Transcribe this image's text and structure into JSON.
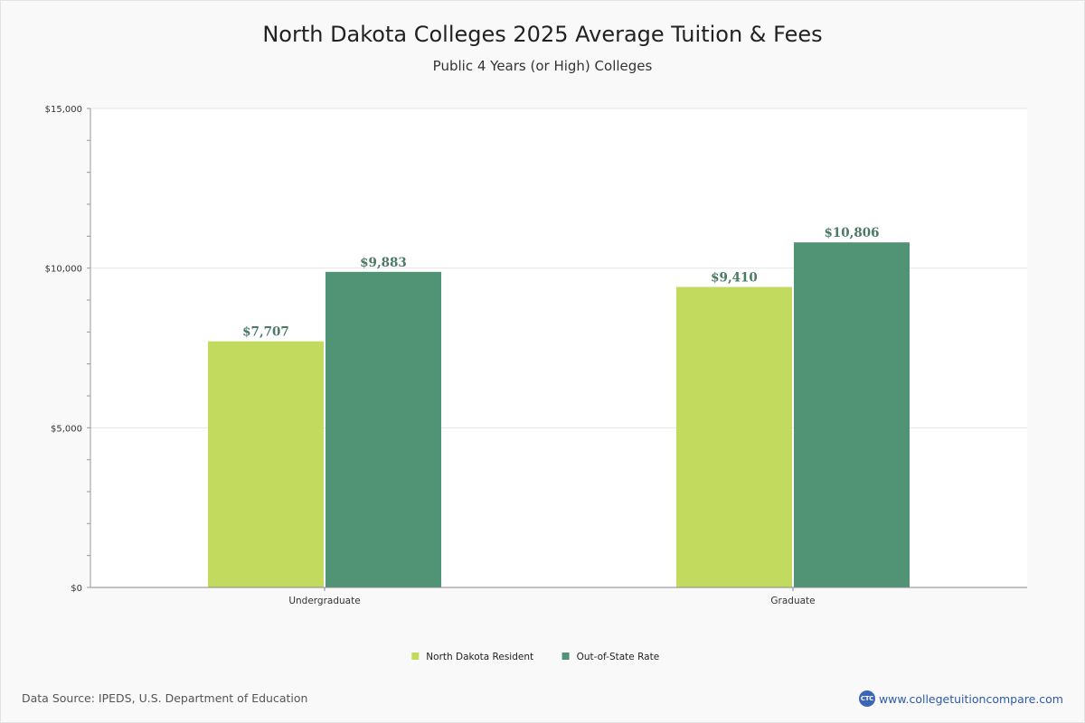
{
  "chart_data": {
    "type": "bar",
    "title": "North Dakota Colleges 2025 Average Tuition & Fees",
    "subtitle": "Public 4 Years (or High)  Colleges",
    "categories": [
      "Undergraduate",
      "Graduate"
    ],
    "series": [
      {
        "name": "North Dakota Resident",
        "values": [
          7707,
          9410
        ],
        "labels": [
          "$7,707",
          "$9,410"
        ],
        "color": "#c2db5f"
      },
      {
        "name": "Out-of-State Rate",
        "values": [
          9883,
          10806
        ],
        "labels": [
          "$9,883",
          "$10,806"
        ],
        "color": "#519375"
      }
    ],
    "ylim": [
      0,
      15000
    ],
    "yticks": [
      0,
      5000,
      10000,
      15000
    ],
    "ytick_labels": [
      "$0",
      "$5,000",
      "$10,000",
      "$15,000"
    ],
    "xlabel": "",
    "ylabel": "",
    "grid": true,
    "legend": "bottom-center",
    "label_color": "#4a7a64"
  },
  "footer": {
    "source": "Data Source: IPEDS, U.S. Department of Education",
    "brand_logo": "CTC",
    "brand_url": "www.collegetuitioncompare.com"
  }
}
